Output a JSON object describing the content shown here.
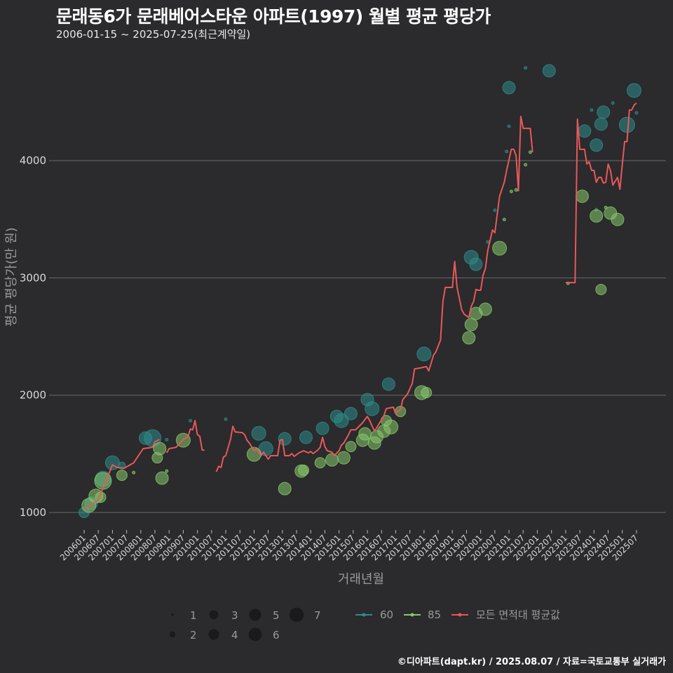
{
  "title": "문래동6가 문래베어스타운 아파트(1997) 월별 평균 평당가",
  "subtitle": "2006-01-15 ~ 2025-07-25(최근계약일)",
  "footer": "©디아파트(dapt.kr) / 2025.08.07 / 자료=국토교통부 실거래가",
  "colors": {
    "background": "#2b2a2c",
    "area60": "#2e8c8c",
    "area85": "#86c96c",
    "average": "#e8585a",
    "grid": "#6a6a6a"
  },
  "chart_data": {
    "type": "line",
    "title": "문래동6가 문래베어스타운 아파트(1997) 월별 평균 평당가",
    "xlabel": "거래년월",
    "ylabel": "평균 평당가(만 원)",
    "ylim": [
      760,
      4850
    ],
    "yticks": [
      1000,
      2000,
      3000,
      4000
    ],
    "xlim": [
      "200512",
      "202509"
    ],
    "xticks": [
      "200601",
      "200607",
      "200701",
      "200707",
      "200801",
      "200807",
      "200901",
      "200907",
      "201001",
      "201007",
      "201101",
      "201107",
      "201201",
      "201207",
      "201301",
      "201307",
      "201401",
      "201407",
      "201501",
      "201507",
      "201601",
      "201607",
      "201701",
      "201707",
      "201801",
      "201807",
      "201901",
      "201907",
      "202001",
      "202007",
      "202101",
      "202107",
      "202201",
      "202207",
      "202301",
      "202307",
      "202401",
      "202407",
      "202501",
      "202507"
    ],
    "grid": "horizontal",
    "legend": {
      "size_title": "",
      "sizes": [
        "1",
        "2",
        "3",
        "4",
        "5",
        "6",
        "7"
      ],
      "series": [
        "60",
        "85",
        "모든 면적대 평균값"
      ],
      "placement": "bottom"
    },
    "average_line": {
      "name": "모든 면적대 평균값",
      "segments": [
        [
          [
            "200601",
            1024
          ],
          [
            "200607",
            1108
          ],
          [
            "200701",
            1406
          ],
          [
            "200703",
            1383
          ],
          [
            "200706",
            1377
          ],
          [
            "200710",
            1424
          ],
          [
            "200802",
            1544
          ],
          [
            "200806",
            1556
          ],
          [
            "200807",
            1604
          ],
          [
            "200809",
            1622
          ]
        ],
        [
          [
            "200812",
            1508
          ],
          [
            "200901",
            1544
          ],
          [
            "200904",
            1556
          ],
          [
            "200907",
            1622
          ],
          [
            "200909",
            1646
          ],
          [
            "200910",
            1711
          ],
          [
            "200911",
            1705
          ],
          [
            "200912",
            1783
          ],
          [
            "201001",
            1663
          ],
          [
            "201002",
            1651
          ],
          [
            "201003",
            1532
          ],
          [
            "201004",
            1532
          ]
        ],
        [
          [
            "201009",
            1347
          ],
          [
            "201010",
            1394
          ],
          [
            "201011",
            1383
          ],
          [
            "201012",
            1472
          ],
          [
            "201101",
            1484
          ],
          [
            "201103",
            1622
          ],
          [
            "201104",
            1735
          ],
          [
            "201105",
            1687
          ],
          [
            "201108",
            1681
          ],
          [
            "201109",
            1663
          ],
          [
            "201110",
            1616
          ],
          [
            "201111",
            1592
          ],
          [
            "201201",
            1526
          ],
          [
            "201202",
            1544
          ],
          [
            "201204",
            1484
          ],
          [
            "201205",
            1514
          ],
          [
            "201207",
            1454
          ],
          [
            "201208",
            1484
          ],
          [
            "201211",
            1484
          ],
          [
            "201212",
            1616
          ],
          [
            "201301",
            1622
          ],
          [
            "201302",
            1484
          ],
          [
            "201304",
            1484
          ],
          [
            "201305",
            1502
          ],
          [
            "201306",
            1478
          ],
          [
            "201308",
            1508
          ],
          [
            "201310",
            1526
          ],
          [
            "201312",
            1508
          ],
          [
            "201401",
            1520
          ],
          [
            "201402",
            1502
          ],
          [
            "201404",
            1532
          ],
          [
            "201405",
            1556
          ],
          [
            "201406",
            1640
          ],
          [
            "201407",
            1562
          ],
          [
            "201408",
            1526
          ],
          [
            "201410",
            1514
          ],
          [
            "201411",
            1484
          ],
          [
            "201501",
            1526
          ],
          [
            "201502",
            1574
          ],
          [
            "201503",
            1592
          ],
          [
            "201505",
            1663
          ],
          [
            "201506",
            1705
          ],
          [
            "201508",
            1705
          ],
          [
            "201511",
            1765
          ],
          [
            "201601",
            1819
          ],
          [
            "201602",
            1783
          ],
          [
            "201604",
            1693
          ],
          [
            "201605",
            1723
          ],
          [
            "201608",
            1825
          ],
          [
            "201609",
            1885
          ],
          [
            "201612",
            1897
          ],
          [
            "201701",
            1843
          ],
          [
            "201702",
            1867
          ],
          [
            "201703",
            1873
          ],
          [
            "201704",
            1962
          ],
          [
            "201706",
            2010
          ],
          [
            "201708",
            2100
          ],
          [
            "201709",
            2225
          ],
          [
            "201711",
            2231
          ],
          [
            "201802",
            2243
          ],
          [
            "201803",
            2207
          ],
          [
            "201805",
            2339
          ],
          [
            "201806",
            2369
          ],
          [
            "201808",
            2470
          ],
          [
            "201809",
            2799
          ],
          [
            "201810",
            2919
          ],
          [
            "201901",
            2919
          ],
          [
            "201902",
            3140
          ],
          [
            "201903",
            2919
          ],
          [
            "201905",
            2727
          ],
          [
            "201906",
            2691
          ],
          [
            "201908",
            2662
          ],
          [
            "201909",
            2757
          ],
          [
            "201910",
            2799
          ],
          [
            "201911",
            2901
          ],
          [
            "201912",
            2895
          ],
          [
            "202001",
            2895
          ],
          [
            "202002",
            3020
          ],
          [
            "202003",
            3080
          ],
          [
            "202004",
            3235
          ],
          [
            "202006",
            3409
          ],
          [
            "202007",
            3385
          ],
          [
            "202009",
            3696
          ],
          [
            "202011",
            3815
          ],
          [
            "202012",
            3917
          ],
          [
            "202102",
            4096
          ],
          [
            "202103",
            4096
          ],
          [
            "202104",
            4042
          ],
          [
            "202105",
            3743
          ],
          [
            "202106",
            4377
          ],
          [
            "202107",
            4275
          ],
          [
            "202110",
            4275
          ],
          [
            "202111",
            4072
          ]
        ],
        [
          [
            "202301",
            2960
          ],
          [
            "202305",
            2960
          ],
          [
            "202306",
            4353
          ],
          [
            "202307",
            4096
          ],
          [
            "202309",
            4096
          ],
          [
            "202310",
            3971
          ],
          [
            "202311",
            3989
          ],
          [
            "202312",
            3917
          ],
          [
            "202401",
            3917
          ],
          [
            "202402",
            3815
          ],
          [
            "202403",
            3857
          ],
          [
            "202404",
            3857
          ],
          [
            "202405",
            3809
          ],
          [
            "202406",
            3815
          ],
          [
            "202407",
            3971
          ],
          [
            "202408",
            3917
          ],
          [
            "202409",
            3791
          ],
          [
            "202411",
            3857
          ],
          [
            "202412",
            3755
          ],
          [
            "202501",
            3971
          ],
          [
            "202502",
            4162
          ],
          [
            "202503",
            4162
          ],
          [
            "202504",
            4431
          ],
          [
            "202505",
            4431
          ],
          [
            "202506",
            4473
          ],
          [
            "202507",
            4491
          ]
        ]
      ]
    },
    "bubbles": [
      {
        "series": "60",
        "points": [
          [
            "200601",
            1000,
            3
          ],
          [
            "200604",
            1078,
            4
          ],
          [
            "200609",
            1287,
            6
          ],
          [
            "200701",
            1424,
            5
          ],
          [
            "200705",
            1400,
            2
          ],
          [
            "200803",
            1634,
            4
          ],
          [
            "200806",
            1634,
            7
          ],
          [
            "200812",
            1620,
            1
          ],
          [
            "200910",
            1783,
            1
          ],
          [
            "201101",
            1795,
            1
          ],
          [
            "201203",
            1675,
            5
          ],
          [
            "201206",
            1544,
            5
          ],
          [
            "201302",
            1628,
            4
          ],
          [
            "201311",
            1640,
            4
          ],
          [
            "201406",
            1717,
            4
          ],
          [
            "201412",
            1819,
            4
          ],
          [
            "201502",
            1783,
            5
          ],
          [
            "201506",
            1843,
            4
          ],
          [
            "201601",
            1962,
            4
          ],
          [
            "201603",
            1885,
            5
          ],
          [
            "201610",
            2094,
            4
          ],
          [
            "201801",
            2351,
            5
          ],
          [
            "201909",
            3176,
            5
          ],
          [
            "201911",
            3116,
            4
          ],
          [
            "202004",
            3307,
            1
          ],
          [
            "202007",
            3576,
            1
          ],
          [
            "202012",
            4078,
            1
          ],
          [
            "202101",
            4293,
            1
          ],
          [
            "202101",
            4622,
            4
          ],
          [
            "202108",
            4790,
            1
          ],
          [
            "202206",
            4766,
            4
          ],
          [
            "202309",
            4252,
            4
          ],
          [
            "202312",
            4431,
            1
          ],
          [
            "202402",
            4132,
            4
          ],
          [
            "202402",
            3582,
            1
          ],
          [
            "202404",
            4311,
            4
          ],
          [
            "202405",
            4413,
            4
          ],
          [
            "202409",
            4491,
            1
          ],
          [
            "202503",
            4305,
            6
          ],
          [
            "202506",
            4598,
            5
          ],
          [
            "202507",
            4407,
            1
          ]
        ]
      },
      {
        "series": "85",
        "points": [
          [
            "200603",
            1060,
            5
          ],
          [
            "200606",
            1140,
            5
          ],
          [
            "200609",
            1269,
            7
          ],
          [
            "200608",
            1130,
            3
          ],
          [
            "200705",
            1317,
            3
          ],
          [
            "200710",
            1340,
            1
          ],
          [
            "200808",
            1466,
            3
          ],
          [
            "200810",
            1293,
            4
          ],
          [
            "200809",
            1544,
            4
          ],
          [
            "200812",
            1353,
            1
          ],
          [
            "200907",
            1616,
            5
          ],
          [
            "201201",
            1496,
            5
          ],
          [
            "201302",
            1203,
            4
          ],
          [
            "201309",
            1353,
            4
          ],
          [
            "201310",
            1360,
            3
          ],
          [
            "201405",
            1424,
            3
          ],
          [
            "201410",
            1448,
            4
          ],
          [
            "201503",
            1466,
            4
          ],
          [
            "201506",
            1562,
            3
          ],
          [
            "201511",
            1616,
            4
          ],
          [
            "201512",
            1670,
            4
          ],
          [
            "201604",
            1592,
            4
          ],
          [
            "201605",
            1646,
            4
          ],
          [
            "201608",
            1693,
            4
          ],
          [
            "201609",
            1783,
            3
          ],
          [
            "201611",
            1729,
            5
          ],
          [
            "201703",
            1861,
            3
          ],
          [
            "201712",
            2022,
            5
          ],
          [
            "201802",
            2022,
            3
          ],
          [
            "201908",
            2489,
            4
          ],
          [
            "201909",
            2602,
            4
          ],
          [
            "201911",
            2697,
            4
          ],
          [
            "202003",
            2733,
            4
          ],
          [
            "202009",
            3253,
            5
          ],
          [
            "202011",
            3498,
            1
          ],
          [
            "202102",
            3737,
            1
          ],
          [
            "202104",
            3750,
            1
          ],
          [
            "202108",
            3965,
            1
          ],
          [
            "202110",
            4072,
            1
          ],
          [
            "202302",
            2954,
            1
          ],
          [
            "202308",
            3696,
            4
          ],
          [
            "202402",
            3528,
            4
          ],
          [
            "202404",
            2901,
            3
          ],
          [
            "202406",
            3600,
            1
          ],
          [
            "202408",
            3552,
            4
          ],
          [
            "202411",
            3498,
            4
          ]
        ]
      }
    ]
  }
}
